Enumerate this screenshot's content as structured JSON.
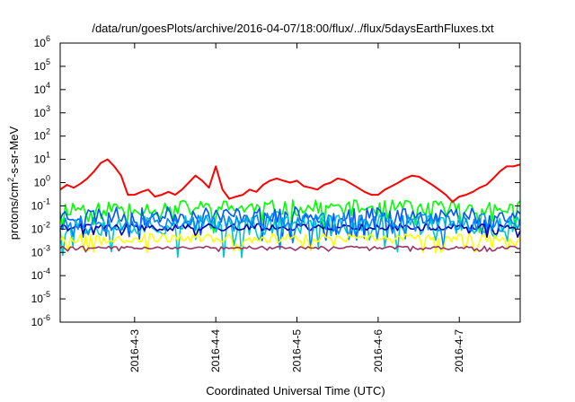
{
  "chart_data": {
    "type": "line",
    "title": "/data/run/goesPlots/archive/2016-04-07/18:00/flux/../flux/5daysEarthFluxes.txt",
    "xlabel": "Coordinated Universal Time (UTC)",
    "ylabel": {
      "prefix": "protons/cm",
      "sup": "2",
      "suffix": "-s-sr-MeV"
    },
    "yscale": "log",
    "ylim": [
      1e-06,
      1000000.0
    ],
    "y_ticks": [
      {
        "base": "10",
        "exp": "-6",
        "value": 1e-06
      },
      {
        "base": "10",
        "exp": "-5",
        "value": 1e-05
      },
      {
        "base": "10",
        "exp": "-4",
        "value": 0.0001
      },
      {
        "base": "10",
        "exp": "-3",
        "value": 0.001
      },
      {
        "base": "10",
        "exp": "-2",
        "value": 0.01
      },
      {
        "base": "10",
        "exp": "-1",
        "value": 0.1
      },
      {
        "base": "10",
        "exp": "0",
        "value": 1
      },
      {
        "base": "10",
        "exp": "1",
        "value": 10
      },
      {
        "base": "10",
        "exp": "2",
        "value": 100
      },
      {
        "base": "10",
        "exp": "3",
        "value": 1000
      },
      {
        "base": "10",
        "exp": "4",
        "value": 10000
      },
      {
        "base": "10",
        "exp": "5",
        "value": 100000
      },
      {
        "base": "10",
        "exp": "6",
        "value": 1000000
      }
    ],
    "xlim": [
      "2016-04-02T02:00",
      "2016-04-07T18:00"
    ],
    "x_ticks": [
      {
        "label": "2016-4-3",
        "value": "2016-04-03T00:00"
      },
      {
        "label": "2016-4-4",
        "value": "2016-04-04T00:00"
      },
      {
        "label": "2016-4-5",
        "value": "2016-04-05T00:00"
      },
      {
        "label": "2016-4-6",
        "value": "2016-04-06T00:00"
      },
      {
        "label": "2016-4-7",
        "value": "2016-04-07T00:00"
      }
    ],
    "grid": false,
    "legend": "none",
    "series": [
      {
        "color": "#ff0000",
        "points": [
          [
            "2016-04-02T02:00",
            0.5
          ],
          [
            "2016-04-02T04:00",
            0.8
          ],
          [
            "2016-04-02T06:00",
            0.6
          ],
          [
            "2016-04-02T08:00",
            0.9
          ],
          [
            "2016-04-02T10:00",
            1.5
          ],
          [
            "2016-04-02T12:00",
            3
          ],
          [
            "2016-04-02T14:00",
            7
          ],
          [
            "2016-04-02T16:00",
            10
          ],
          [
            "2016-04-02T18:00",
            5
          ],
          [
            "2016-04-02T20:00",
            2
          ],
          [
            "2016-04-02T22:00",
            0.3
          ],
          [
            "2016-04-03T00:00",
            0.3
          ],
          [
            "2016-04-03T02:00",
            0.4
          ],
          [
            "2016-04-03T04:00",
            0.5
          ],
          [
            "2016-04-03T06:00",
            0.25
          ],
          [
            "2016-04-03T08:00",
            0.3
          ],
          [
            "2016-04-03T10:00",
            0.4
          ],
          [
            "2016-04-03T12:00",
            0.3
          ],
          [
            "2016-04-03T14:00",
            0.5
          ],
          [
            "2016-04-03T16:00",
            1
          ],
          [
            "2016-04-03T18:00",
            2
          ],
          [
            "2016-04-03T20:00",
            1.2
          ],
          [
            "2016-04-03T22:00",
            0.6
          ],
          [
            "2016-04-04T00:00",
            5
          ],
          [
            "2016-04-04T02:00",
            0.5
          ],
          [
            "2016-04-04T04:00",
            0.2
          ],
          [
            "2016-04-04T06:00",
            0.25
          ],
          [
            "2016-04-04T08:00",
            0.3
          ],
          [
            "2016-04-04T10:00",
            0.5
          ],
          [
            "2016-04-04T12:00",
            0.4
          ],
          [
            "2016-04-04T14:00",
            0.8
          ],
          [
            "2016-04-04T16:00",
            1.2
          ],
          [
            "2016-04-04T18:00",
            1.5
          ],
          [
            "2016-04-04T20:00",
            1.2
          ],
          [
            "2016-04-04T22:00",
            1
          ],
          [
            "2016-04-05T00:00",
            1.2
          ],
          [
            "2016-04-05T02:00",
            0.7
          ],
          [
            "2016-04-05T04:00",
            0.6
          ],
          [
            "2016-04-05T06:00",
            0.5
          ],
          [
            "2016-04-05T08:00",
            0.8
          ],
          [
            "2016-04-05T10:00",
            1
          ],
          [
            "2016-04-05T12:00",
            1.5
          ],
          [
            "2016-04-05T14:00",
            1.3
          ],
          [
            "2016-04-05T16:00",
            0.9
          ],
          [
            "2016-04-05T18:00",
            0.6
          ],
          [
            "2016-04-05T20:00",
            0.4
          ],
          [
            "2016-04-05T22:00",
            0.3
          ],
          [
            "2016-04-06T00:00",
            0.3
          ],
          [
            "2016-04-06T02:00",
            0.5
          ],
          [
            "2016-04-06T04:00",
            0.7
          ],
          [
            "2016-04-06T06:00",
            1
          ],
          [
            "2016-04-06T08:00",
            1.5
          ],
          [
            "2016-04-06T10:00",
            2
          ],
          [
            "2016-04-06T12:00",
            1.8
          ],
          [
            "2016-04-06T14:00",
            1.2
          ],
          [
            "2016-04-06T16:00",
            0.8
          ],
          [
            "2016-04-06T18:00",
            0.5
          ],
          [
            "2016-04-06T20:00",
            0.3
          ],
          [
            "2016-04-06T22:00",
            0.15
          ],
          [
            "2016-04-07T00:00",
            0.25
          ],
          [
            "2016-04-07T02:00",
            0.3
          ],
          [
            "2016-04-07T04:00",
            0.4
          ],
          [
            "2016-04-07T06:00",
            0.6
          ],
          [
            "2016-04-07T08:00",
            0.8
          ],
          [
            "2016-04-07T10:00",
            1.5
          ],
          [
            "2016-04-07T12:00",
            3
          ],
          [
            "2016-04-07T14:00",
            5
          ],
          [
            "2016-04-07T16:00",
            5
          ],
          [
            "2016-04-07T18:00",
            6
          ]
        ]
      },
      {
        "color": "#00ff00",
        "level": 0.08,
        "spread": 0.35,
        "noise_seed": 11
      },
      {
        "color": "#0055ff",
        "level": 0.04,
        "spread": 0.35,
        "noise_seed": 23
      },
      {
        "color": "#00c8c8",
        "level": 0.015,
        "spread": 0.45,
        "noise_seed": 37
      },
      {
        "color": "#0000aa",
        "level": 0.012,
        "spread": 0.15,
        "noise_seed": 41
      },
      {
        "color": "#0088ff",
        "level": 0.02,
        "spread": 0.4,
        "noise_seed": 53
      },
      {
        "color": "#ffff00",
        "level": 0.004,
        "spread": 0.2,
        "noise_seed": 67
      },
      {
        "color": "#993366",
        "level": 0.0016,
        "spread": 0.06,
        "noise_seed": 79
      }
    ]
  }
}
